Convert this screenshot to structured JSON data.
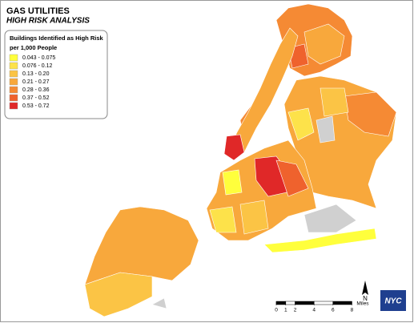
{
  "header": {
    "title": "GAS UTILITIES",
    "subtitle": "HIGH RISK ANALYSIS"
  },
  "legend": {
    "title_lines": [
      "Buildings Identified as High Risk",
      "per 1,000 People"
    ],
    "classes": [
      {
        "label": "0.043 - 0.075",
        "color": "#ffff3c"
      },
      {
        "label": "0.076 - 0.12",
        "color": "#fde24a"
      },
      {
        "label": "0.13 - 0.20",
        "color": "#fbc445"
      },
      {
        "label": "0.21 - 0.27",
        "color": "#f8a83c"
      },
      {
        "label": "0.28 - 0.36",
        "color": "#f58a34"
      },
      {
        "label": "0.37 - 0.52",
        "color": "#ef622d"
      },
      {
        "label": "0.53 - 0.72",
        "color": "#e02828"
      }
    ]
  },
  "scale_bar": {
    "ticks": [
      0,
      1,
      2,
      4,
      6,
      8
    ],
    "unit": "Miles"
  },
  "north_label": "N",
  "logo": "NYC"
}
